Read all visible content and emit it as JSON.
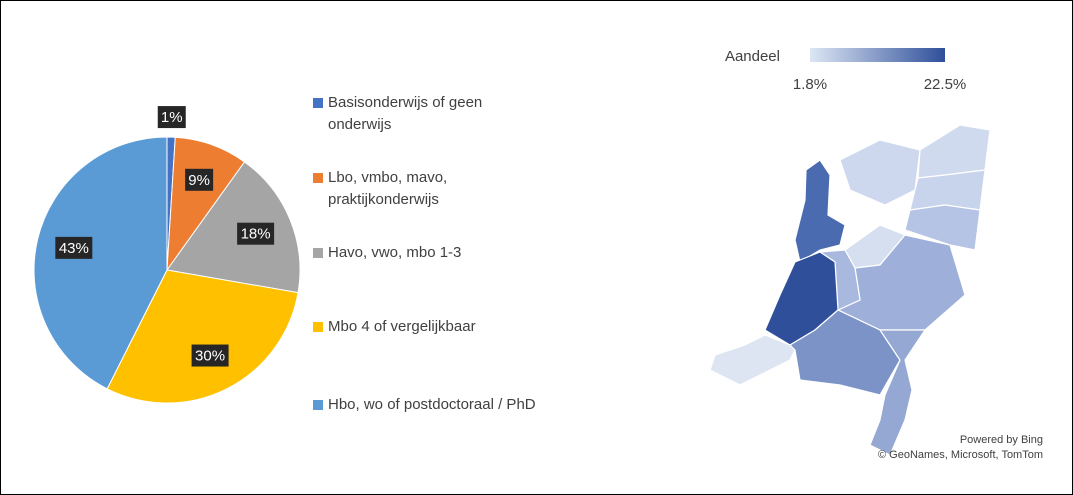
{
  "chart_data": [
    {
      "type": "pie",
      "categories": [
        "Basisonderwijs of geen onderwijs",
        "Lbo, vmbo, mavo, praktijkonderwijs",
        "Havo, vwo, mbo 1-3",
        "Mbo 4 of vergelijkbaar",
        "Hbo, wo of postdoctoraal / PhD"
      ],
      "values": [
        1,
        9,
        18,
        30,
        43
      ],
      "value_labels": [
        "1%",
        "9%",
        "18%",
        "30%",
        "43%"
      ],
      "colors": [
        "#4472c4",
        "#ed7d31",
        "#a5a5a5",
        "#ffc000",
        "#5b9bd5"
      ],
      "legend": "right"
    },
    {
      "type": "map",
      "title": "Aandeel",
      "scale": [
        {
          "value": 1.8,
          "label": "1.8%"
        },
        {
          "value": 22.5,
          "label": "22.5%"
        }
      ],
      "colors": [
        "#dce6f4",
        "#2f4f9a"
      ],
      "attribution": [
        "Powered by Bing",
        "© GeoNames, Microsoft, TomTom"
      ]
    }
  ]
}
